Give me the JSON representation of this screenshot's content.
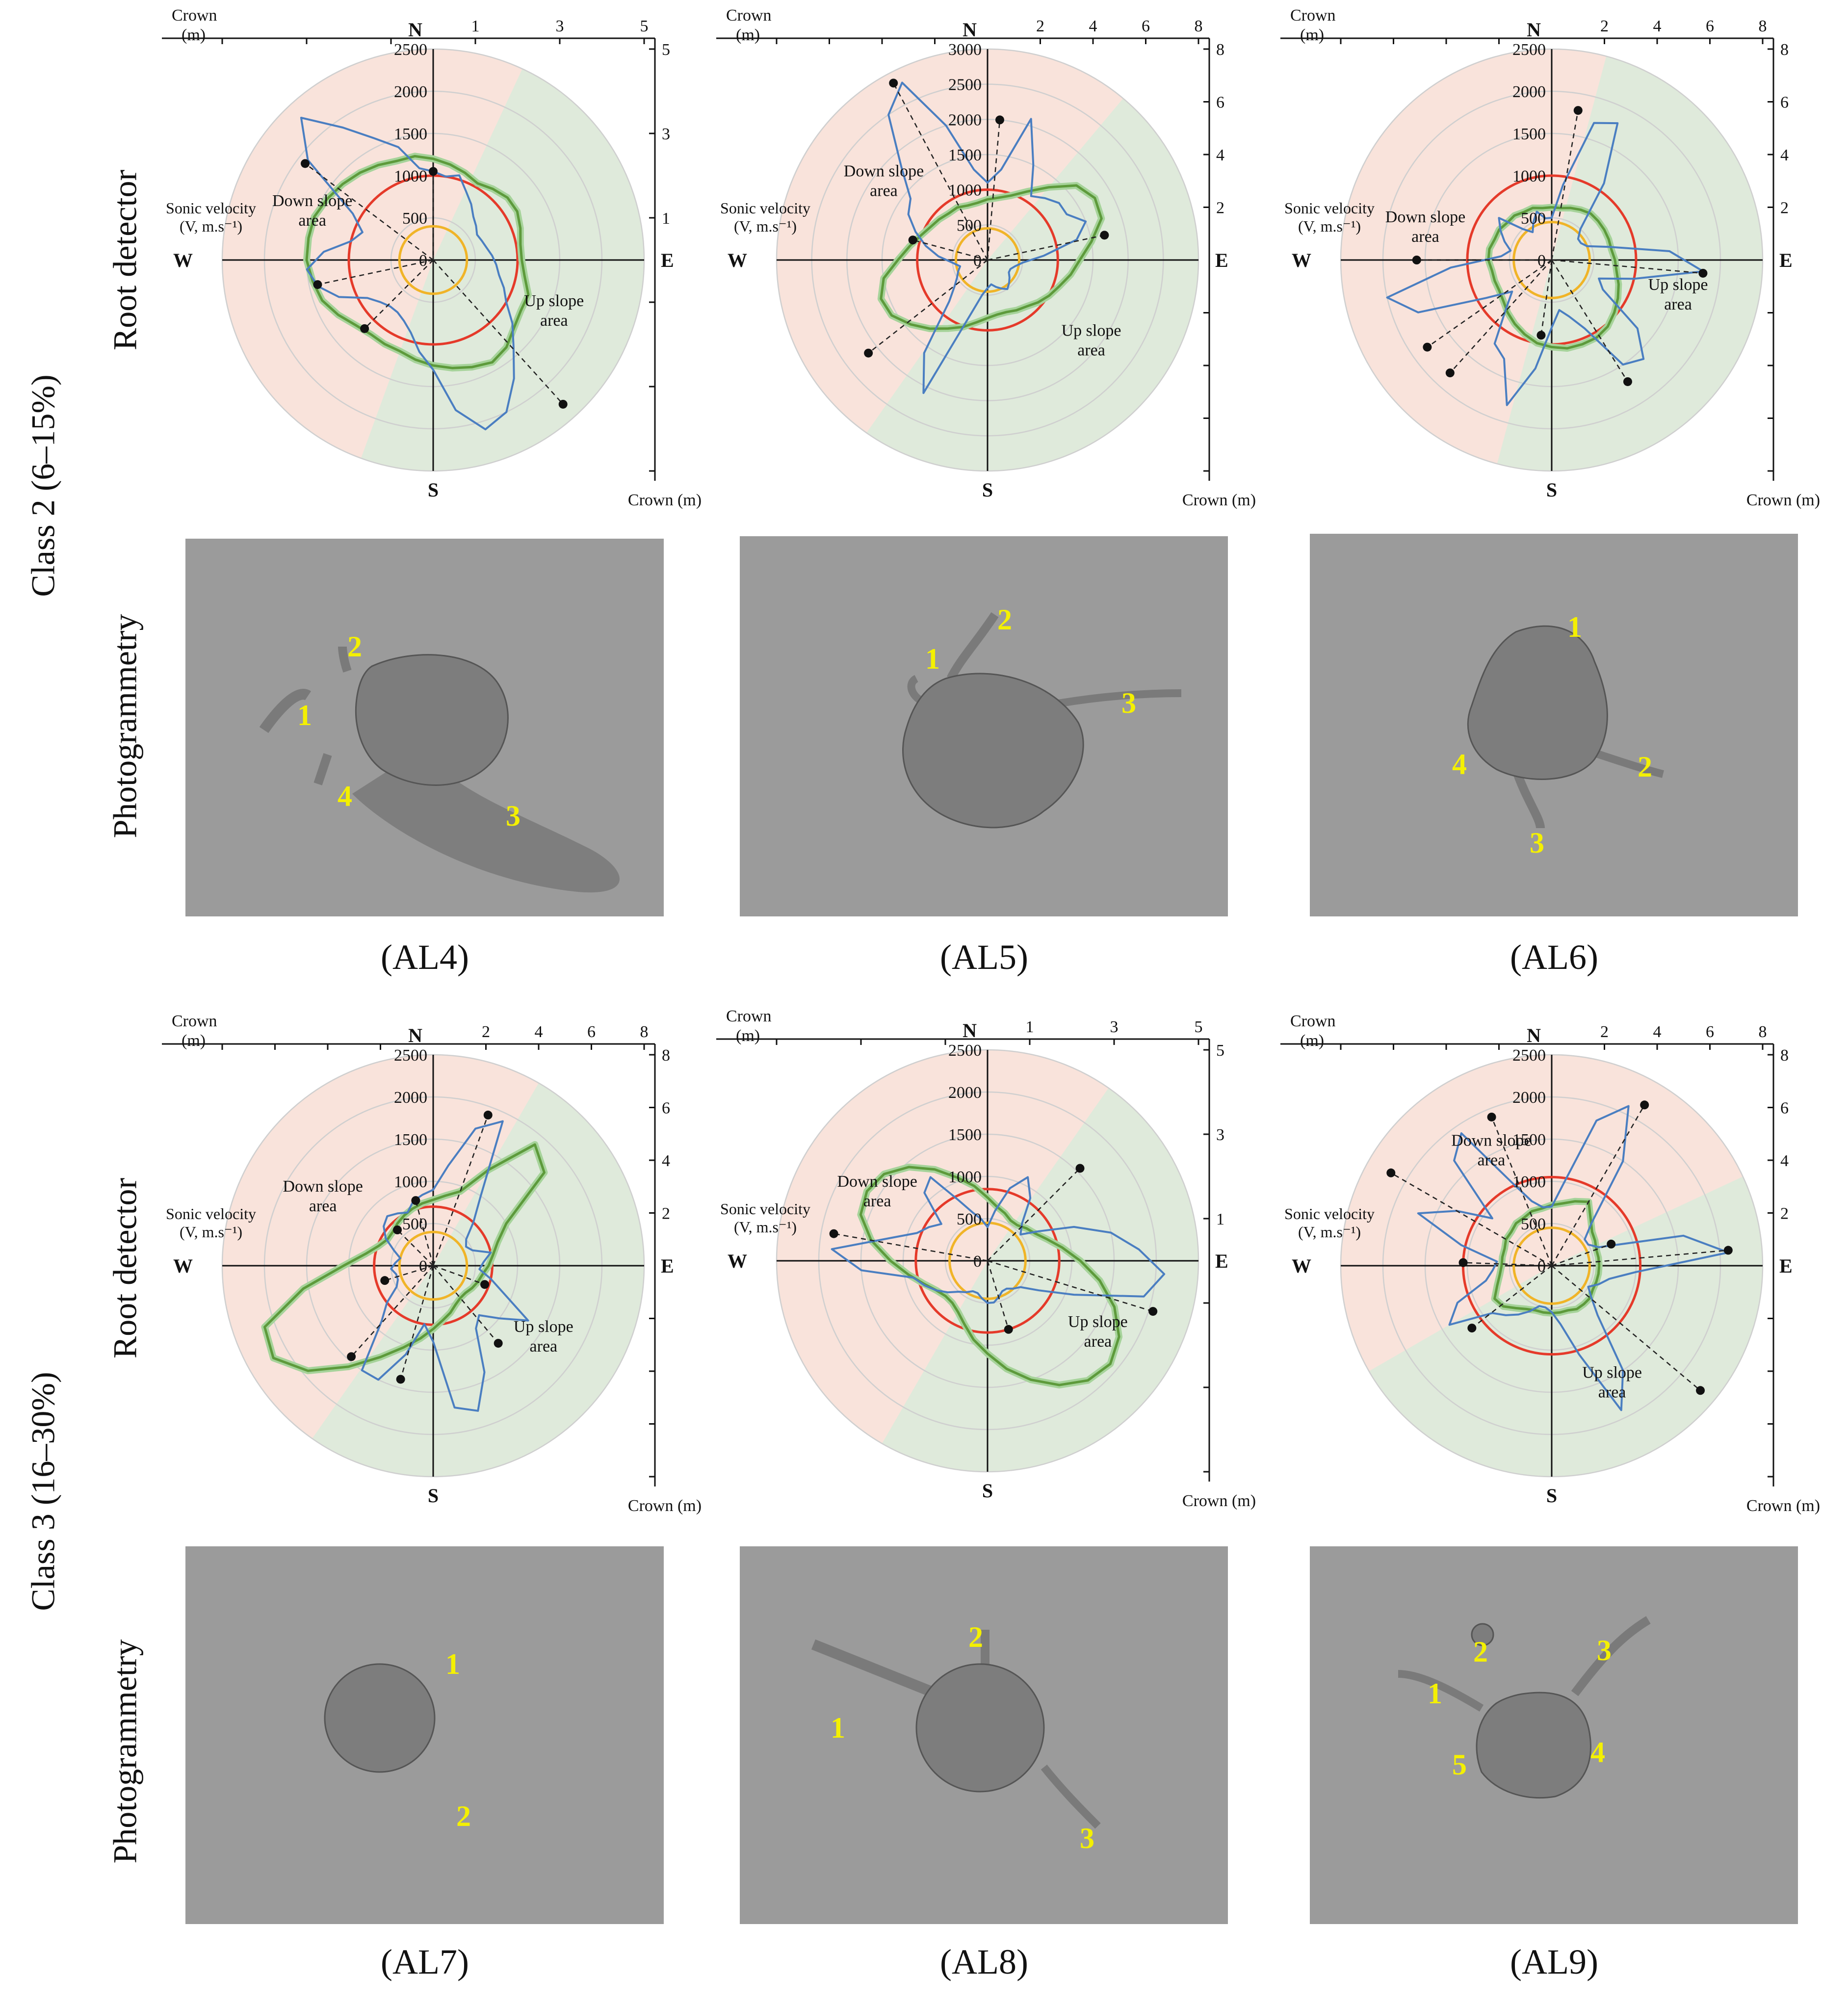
{
  "row_labels": {
    "class2": "Class 2 (6–15%)",
    "class3": "Class 3 (16–30%)",
    "root_detector": "Root detector",
    "photogrammetry": "Photogrammetry"
  },
  "captions": [
    "(AL4)",
    "(AL5)",
    "(AL6)",
    "(AL7)",
    "(AL8)",
    "(AL9)"
  ],
  "common_labels": {
    "north": "N",
    "south": "S",
    "east": "E",
    "west": "W",
    "crown_top": "Crown",
    "crown_top_unit": "(m)",
    "crown_right": "Crown (m)",
    "sonic_velocity": "Sonic velocity",
    "sonic_unit": "(V, m.s⁻¹)",
    "down_slope": "Down slope",
    "up_slope": "Up slope",
    "area": "area"
  },
  "colors": {
    "down_slope_fill": "#f9e3db",
    "up_slope_fill": "#dfeadb",
    "velocity_line": "#4a7ec1",
    "ring_red": "#e53a2a",
    "ring_yellow": "#f0b428",
    "crown_green": "#5d9a3b",
    "ring_gray": "#cfcfcf",
    "label_yellow": "#f4f000",
    "photo_bg": "#9b9b9b"
  },
  "chart_data": [
    {
      "id": "AL4",
      "type": "radar",
      "velocity_ticks": [
        0,
        500,
        1000,
        1500,
        2000,
        2500
      ],
      "velocity_max": 2500,
      "crown_ticks": [
        1,
        3,
        5
      ],
      "crown_max": 5,
      "upslope_start_deg": 25,
      "upslope_end_deg": 200,
      "red_ring_velocity": 1000,
      "yellow_ring_velocity": 400,
      "sonic_velocity_profile": [
        1050,
        1000,
        1050,
        900,
        800,
        700,
        650,
        600,
        620,
        650,
        700,
        750,
        800,
        900,
        1000,
        1200,
        1400,
        1700,
        2000,
        2100,
        1800,
        1300,
        1100,
        900,
        800,
        750,
        750,
        800,
        900,
        1200,
        1400,
        1500,
        1300,
        1000,
        900,
        1100,
        1900,
        2300,
        1900,
        1600,
        1400,
        1100
      ],
      "root_points_velocity": [
        {
          "angle_deg": 0,
          "v": 1050
        },
        {
          "angle_deg": 138,
          "v": 2300
        },
        {
          "angle_deg": 225,
          "v": 1150
        },
        {
          "angle_deg": 258,
          "v": 1400
        },
        {
          "angle_deg": 307,
          "v": 1900
        }
      ],
      "crown_radius_profile": [
        2.4,
        2.3,
        2.2,
        2.1,
        2.2,
        2.3,
        2.3,
        2.2,
        2.1,
        2.1,
        2.2,
        2.4,
        2.4,
        2.5,
        2.7,
        2.8,
        2.7,
        2.6,
        2.5,
        2.4,
        2.3,
        2.3,
        2.3,
        2.4,
        2.6,
        2.8,
        2.9,
        3.0,
        3.0,
        3.0,
        2.9,
        2.8,
        2.7,
        2.6,
        2.5,
        2.5
      ]
    },
    {
      "id": "AL5",
      "type": "radar",
      "velocity_ticks": [
        0,
        500,
        1000,
        1500,
        2000,
        2500,
        3000
      ],
      "velocity_max": 3000,
      "crown_ticks": [
        2,
        4,
        6,
        8
      ],
      "crown_max": 8,
      "upslope_start_deg": 40,
      "upslope_end_deg": 215,
      "red_ring_velocity": 1000,
      "yellow_ring_velocity": 450,
      "sonic_velocity_profile": [
        1100,
        1300,
        2100,
        1500,
        1100,
        1200,
        1300,
        1300,
        1500,
        1300,
        800,
        500,
        400,
        350,
        350,
        400,
        450,
        500,
        450,
        400,
        350,
        400,
        500,
        800,
        2100,
        1600,
        800,
        600,
        500,
        450,
        400,
        500,
        700,
        900,
        1100,
        1300,
        1400,
        1800,
        2500,
        2800,
        2000,
        1300
      ],
      "root_points_velocity": [
        {
          "angle_deg": 5,
          "v": 2000
        },
        {
          "angle_deg": 78,
          "v": 1700
        },
        {
          "angle_deg": 232,
          "v": 2150
        },
        {
          "angle_deg": 285,
          "v": 1100
        },
        {
          "angle_deg": 332,
          "v": 2850
        }
      ],
      "crown_radius_profile": [
        2.3,
        2.4,
        2.6,
        3.0,
        3.6,
        4.4,
        4.7,
        4.6,
        4.0,
        3.5,
        3.2,
        2.9,
        2.7,
        2.5,
        2.3,
        2.2,
        2.1,
        2.1,
        2.2,
        2.4,
        2.7,
        3.0,
        3.4,
        3.8,
        4.2,
        4.3,
        4.0,
        3.4,
        3.0,
        2.7,
        2.5,
        2.4,
        2.3,
        2.3,
        2.2,
        2.2
      ]
    },
    {
      "id": "AL6",
      "type": "radar",
      "velocity_ticks": [
        0,
        500,
        1000,
        1500,
        2000,
        2500
      ],
      "velocity_max": 2500,
      "crown_ticks": [
        2,
        4,
        6,
        8
      ],
      "crown_max": 8,
      "upslope_start_deg": 15,
      "upslope_end_deg": 195,
      "red_ring_velocity": 1000,
      "yellow_ring_velocity": 450,
      "sonic_velocity_profile": [
        500,
        900,
        1700,
        1800,
        1100,
        500,
        400,
        400,
        450,
        700,
        1400,
        1800,
        1000,
        600,
        700,
        1300,
        1600,
        1500,
        900,
        700,
        600,
        800,
        1300,
        1800,
        1300,
        1200,
        800,
        600,
        900,
        1700,
        2000,
        1200,
        600,
        500,
        600,
        700,
        800,
        500,
        400,
        500,
        600,
        500
      ],
      "root_points_velocity": [
        {
          "angle_deg": 10,
          "v": 1800
        },
        {
          "angle_deg": 95,
          "v": 1800
        },
        {
          "angle_deg": 148,
          "v": 1700
        },
        {
          "angle_deg": 188,
          "v": 900
        },
        {
          "angle_deg": 222,
          "v": 1800
        },
        {
          "angle_deg": 235,
          "v": 1800
        },
        {
          "angle_deg": 270,
          "v": 1600
        }
      ],
      "crown_radius_profile": [
        2.0,
        2.0,
        2.1,
        2.2,
        2.3,
        2.3,
        2.3,
        2.3,
        2.3,
        2.4,
        2.5,
        2.7,
        2.9,
        3.1,
        3.3,
        3.4,
        3.4,
        3.4,
        3.3,
        3.2,
        3.0,
        2.8,
        2.6,
        2.4,
        2.3,
        2.3,
        2.3,
        2.4,
        2.4,
        2.3,
        2.3,
        2.2,
        2.2,
        2.1,
        2.1,
        2.0
      ]
    },
    {
      "id": "AL7",
      "type": "radar",
      "velocity_ticks": [
        0,
        500,
        1000,
        1500,
        2000,
        2500
      ],
      "velocity_max": 2500,
      "crown_ticks": [
        2,
        4,
        6,
        8
      ],
      "crown_max": 8,
      "upslope_start_deg": 30,
      "upslope_end_deg": 215,
      "red_ring_velocity": 700,
      "yellow_ring_velocity": 400,
      "sonic_velocity_profile": [
        900,
        1200,
        1700,
        1900,
        1000,
        700,
        500,
        450,
        500,
        700,
        600,
        550,
        700,
        900,
        1300,
        1000,
        800,
        900,
        1400,
        1800,
        1700,
        900,
        700,
        1100,
        1500,
        1500,
        900,
        700,
        500,
        450,
        450,
        500,
        450,
        400,
        500,
        650,
        750,
        800,
        750,
        700,
        800,
        850
      ],
      "root_points_velocity": [
        {
          "angle_deg": 20,
          "v": 1900
        },
        {
          "angle_deg": 110,
          "v": 650
        },
        {
          "angle_deg": 140,
          "v": 1200
        },
        {
          "angle_deg": 196,
          "v": 1400
        },
        {
          "angle_deg": 222,
          "v": 1450
        },
        {
          "angle_deg": 253,
          "v": 600
        },
        {
          "angle_deg": 315,
          "v": 600
        },
        {
          "angle_deg": 345,
          "v": 800
        }
      ],
      "crown_radius_profile": [
        2.5,
        2.7,
        3.0,
        4.2,
        6.0,
        5.5,
        3.2,
        2.6,
        2.3,
        2.1,
        1.9,
        1.8,
        1.7,
        1.6,
        1.6,
        1.7,
        1.9,
        2.1,
        2.4,
        2.8,
        3.3,
        4.0,
        5.0,
        6.2,
        7.0,
        6.8,
        5.0,
        3.4,
        2.6,
        2.2,
        2.0,
        2.0,
        2.1,
        2.2,
        2.3,
        2.4
      ]
    },
    {
      "id": "AL8",
      "type": "radar",
      "velocity_ticks": [
        0,
        500,
        1000,
        1500,
        2000,
        2500
      ],
      "velocity_max": 2500,
      "crown_ticks": [
        1,
        3,
        5
      ],
      "crown_max": 5,
      "upslope_start_deg": 35,
      "upslope_end_deg": 210,
      "red_ring_velocity": 850,
      "yellow_ring_velocity": 450,
      "sonic_velocity_profile": [
        400,
        600,
        900,
        1100,
        900,
        600,
        500,
        700,
        1100,
        1500,
        1800,
        2100,
        1900,
        1100,
        700,
        500,
        450,
        400,
        400,
        450,
        500,
        500,
        450,
        400,
        400,
        450,
        500,
        600,
        700,
        800,
        900,
        1500,
        1850,
        1200,
        900,
        800,
        700,
        1100,
        1200,
        800,
        600,
        500
      ],
      "root_points_velocity": [
        {
          "angle_deg": 45,
          "v": 1550
        },
        {
          "angle_deg": 107,
          "v": 2050
        },
        {
          "angle_deg": 163,
          "v": 850
        },
        {
          "angle_deg": 280,
          "v": 1850
        }
      ],
      "crown_radius_profile": [
        1.5,
        1.3,
        1.2,
        1.1,
        1.1,
        1.2,
        1.3,
        1.5,
        1.8,
        2.2,
        2.7,
        3.2,
        3.6,
        3.8,
        3.7,
        3.4,
        3.0,
        2.6,
        2.2,
        1.9,
        1.6,
        1.4,
        1.3,
        1.3,
        1.4,
        1.6,
        1.9,
        2.3,
        2.8,
        3.2,
        3.3,
        3.2,
        2.9,
        2.5,
        2.1,
        1.8
      ]
    },
    {
      "id": "AL9",
      "type": "radar",
      "velocity_ticks": [
        0,
        500,
        1000,
        1500,
        2000,
        2500
      ],
      "velocity_max": 2500,
      "crown_ticks": [
        2,
        4,
        6,
        8
      ],
      "crown_max": 8,
      "upslope_start_deg": 65,
      "upslope_end_deg": 240,
      "red_ring_velocity": 1050,
      "yellow_ring_velocity": 450,
      "sonic_velocity_profile": [
        700,
        1000,
        1800,
        2100,
        1500,
        700,
        500,
        500,
        600,
        1600,
        2100,
        1000,
        700,
        600,
        500,
        600,
        800,
        1500,
        1900,
        1100,
        700,
        550,
        500,
        500,
        600,
        700,
        800,
        900,
        1400,
        1200,
        800,
        700,
        650,
        1100,
        1700,
        1300,
        900,
        1700,
        1900,
        1100,
        800,
        700
      ],
      "root_points_velocity": [
        {
          "angle_deg": 30,
          "v": 2200
        },
        {
          "angle_deg": 70,
          "v": 750
        },
        {
          "angle_deg": 85,
          "v": 2100
        },
        {
          "angle_deg": 130,
          "v": 2300
        },
        {
          "angle_deg": 232,
          "v": 1200
        },
        {
          "angle_deg": 272,
          "v": 1050
        },
        {
          "angle_deg": 300,
          "v": 2200
        },
        {
          "angle_deg": 338,
          "v": 1900
        }
      ],
      "crown_radius_profile": [
        2.3,
        2.4,
        2.6,
        2.8,
        2.3,
        2.0,
        1.9,
        1.8,
        1.8,
        1.8,
        1.8,
        1.8,
        1.8,
        1.9,
        1.9,
        1.9,
        1.8,
        1.8,
        1.8,
        1.8,
        1.8,
        1.9,
        2.1,
        2.4,
        2.5,
        2.2,
        2.0,
        1.9,
        1.9,
        1.9,
        2.0,
        2.0,
        2.1,
        2.1,
        2.2,
        2.2
      ]
    }
  ],
  "photo_labels": [
    {
      "id": "AL4",
      "labels": [
        "1",
        "2",
        "3",
        "4"
      ]
    },
    {
      "id": "AL5",
      "labels": [
        "1",
        "2",
        "3"
      ]
    },
    {
      "id": "AL6",
      "labels": [
        "1",
        "2",
        "3",
        "4"
      ]
    },
    {
      "id": "AL7",
      "labels": [
        "1",
        "2"
      ]
    },
    {
      "id": "AL8",
      "labels": [
        "1",
        "2",
        "3"
      ]
    },
    {
      "id": "AL9",
      "labels": [
        "1",
        "2",
        "3",
        "4",
        "5"
      ]
    }
  ]
}
